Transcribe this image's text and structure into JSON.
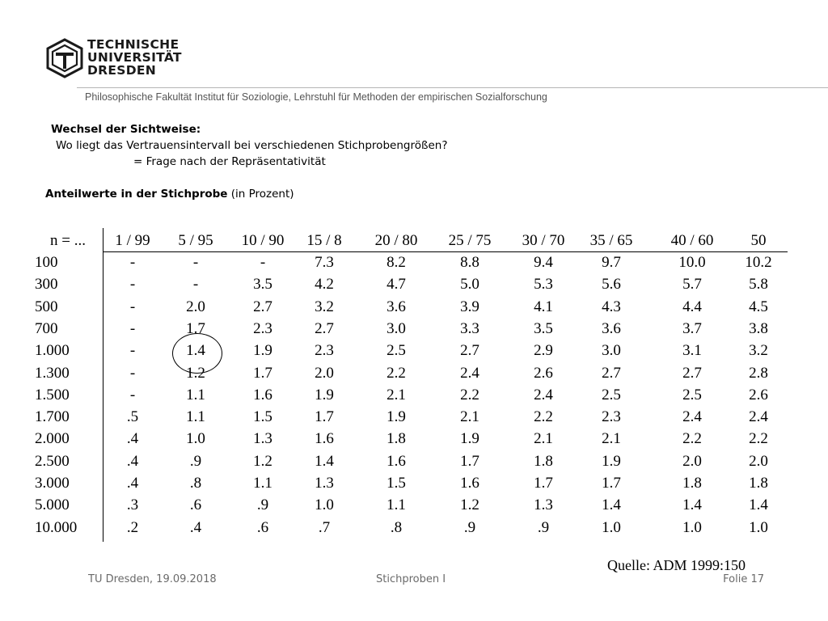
{
  "logo": {
    "icon": "tu-dresden-logo-icon",
    "lines": [
      "TECHNISCHE",
      "UNIVERSITÄT",
      "DRESDEN"
    ]
  },
  "header": {
    "faculty": "Philosophische Fakultät",
    "institute": " Institut für Soziologie, Lehrstuhl für Methoden der empirischen Sozialforschung"
  },
  "intro": {
    "line1": "Wechsel der Sichtweise:",
    "line2": "Wo liegt das Vertrauensintervall bei verschiedenen Stichprobengrößen?",
    "line3": "= Frage nach der Repräsentativität"
  },
  "subtitle": {
    "bold": "Anteilwerte in der Stichprobe",
    "normal": " (in Prozent)"
  },
  "table": {
    "header_label": "n = ...",
    "columns": [
      "1 / 99",
      "5 / 95",
      "10 / 90",
      "15 / 8",
      "20 / 80",
      "25 / 75",
      "30 / 70",
      "35 / 65",
      "40 / 60",
      "50"
    ],
    "rows": [
      {
        "n": "100",
        "values": [
          "-",
          "-",
          "-",
          "7.3",
          "8.2",
          "8.8",
          "9.4",
          "9.7",
          "10.0",
          "10.2"
        ]
      },
      {
        "n": "300",
        "values": [
          "-",
          "-",
          "3.5",
          "4.2",
          "4.7",
          "5.0",
          "5.3",
          "5.6",
          "5.7",
          "5.8"
        ]
      },
      {
        "n": "500",
        "values": [
          "-",
          "2.0",
          "2.7",
          "3.2",
          "3.6",
          "3.9",
          "4.1",
          "4.3",
          "4.4",
          "4.5"
        ]
      },
      {
        "n": "700",
        "values": [
          "-",
          "1.7",
          "2.3",
          "2.7",
          "3.0",
          "3.3",
          "3.5",
          "3.6",
          "3.7",
          "3.8"
        ]
      },
      {
        "n": "1.000",
        "values": [
          "-",
          "1.4",
          "1.9",
          "2.3",
          "2.5",
          "2.7",
          "2.9",
          "3.0",
          "3.1",
          "3.2"
        ]
      },
      {
        "n": "1.300",
        "values": [
          "-",
          "1.2",
          "1.7",
          "2.0",
          "2.2",
          "2.4",
          "2.6",
          "2.7",
          "2.7",
          "2.8"
        ]
      },
      {
        "n": "1.500",
        "values": [
          "-",
          "1.1",
          "1.6",
          "1.9",
          "2.1",
          "2.2",
          "2.4",
          "2.5",
          "2.5",
          "2.6"
        ]
      },
      {
        "n": "1.700",
        "values": [
          ".5",
          "1.1",
          "1.5",
          "1.7",
          "1.9",
          "2.1",
          "2.2",
          "2.3",
          "2.4",
          "2.4"
        ]
      },
      {
        "n": "2.000",
        "values": [
          ".4",
          "1.0",
          "1.3",
          "1.6",
          "1.8",
          "1.9",
          "2.1",
          "2.1",
          "2.2",
          "2.2"
        ]
      },
      {
        "n": "2.500",
        "values": [
          ".4",
          ".9",
          "1.2",
          "1.4",
          "1.6",
          "1.7",
          "1.8",
          "1.9",
          "2.0",
          "2.0"
        ]
      },
      {
        "n": "3.000",
        "values": [
          ".4",
          ".8",
          "1.1",
          "1.3",
          "1.5",
          "1.6",
          "1.7",
          "1.7",
          "1.8",
          "1.8"
        ]
      },
      {
        "n": "5.000",
        "values": [
          ".3",
          ".6",
          ".9",
          "1.0",
          "1.1",
          "1.2",
          "1.3",
          "1.4",
          "1.4",
          "1.4"
        ]
      },
      {
        "n": "10.000",
        "values": [
          ".2",
          ".4",
          ".6",
          ".7",
          ".8",
          ".9",
          ".9",
          "1.0",
          "1.0",
          "1.0"
        ]
      }
    ],
    "highlight": {
      "row_n": "1.000",
      "column": "5 / 95",
      "value": "1.4"
    }
  },
  "source": "Quelle: ADM 1999:150",
  "footer": {
    "left": "TU Dresden, 19.09.2018",
    "center": "Stichproben I",
    "right": "Folie 17"
  }
}
